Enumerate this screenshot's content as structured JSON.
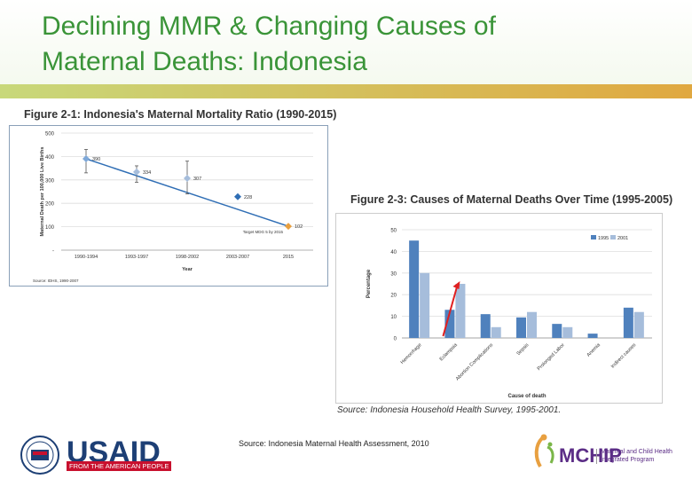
{
  "slide": {
    "title_line1": "Declining MMR & Changing Causes of",
    "title_line2": "Maternal Deaths: Indonesia",
    "source_note": "Source: Indonesia Maternal Health Assessment, 2010"
  },
  "logos": {
    "usaid_name": "USAID",
    "usaid_tagline": "FROM THE AMERICAN PEOPLE",
    "mchip_name": "MCHIP",
    "mchip_line1": "Maternal and Child Health",
    "mchip_line2": "Integrated Program"
  },
  "colors": {
    "title": "#3a9438",
    "series1995": "#4f81bd",
    "series2001": "#a6bddb",
    "line": "#2f6eb5",
    "arrow": "#e02020"
  },
  "chart_data": [
    {
      "type": "line",
      "title": "Figure 2-1: Indonesia's Maternal Mortality Ratio (1990-2015)",
      "xlabel": "Year",
      "ylabel": "Maternal Death per 100,000 Live Births",
      "categories": [
        "1990-1994",
        "1993-1997",
        "1998-2002",
        "2003-2007",
        "2015"
      ],
      "tick_labels": [
        "1990-1994",
        "1993-1997",
        "1998-2002",
        "2003-2007",
        "2015"
      ],
      "ylim": [
        0,
        500
      ],
      "yticks": [
        0,
        100,
        200,
        300,
        400,
        500
      ],
      "points": [
        {
          "label": "390",
          "x": 0,
          "y": 390,
          "err_low": 330,
          "err_high": 430,
          "color": "#7fa8d8"
        },
        {
          "label": "334",
          "x": 1,
          "y": 334,
          "err_low": 290,
          "err_high": 360,
          "color": "#a6bddb"
        },
        {
          "label": "307",
          "x": 2,
          "y": 307,
          "err_low": 240,
          "err_high": 380,
          "color": "#a6bddb"
        },
        {
          "label": "228",
          "x": 3,
          "y": 228,
          "err_low": 228,
          "err_high": 228,
          "color": "#2f6eb5"
        },
        {
          "label": "102",
          "x": 4,
          "y": 102,
          "err_low": 102,
          "err_high": 102,
          "color": "#e8a040"
        }
      ],
      "annotation": "Target MDG 5 by 2015",
      "source": "Source: IDHS, 1990-2007"
    },
    {
      "type": "bar",
      "title": "Figure 2-3: Causes of Maternal Deaths Over Time (1995-2005)",
      "xlabel": "Cause of death",
      "ylabel": "Percentage",
      "ylim": [
        0,
        50
      ],
      "yticks": [
        0,
        10,
        20,
        30,
        40,
        50
      ],
      "categories": [
        "Hemorrhage",
        "Eclampsia",
        "Abortion Complications",
        "Sepsis",
        "Prolonged Labor",
        "Anemia",
        "Indirect causes"
      ],
      "series": [
        {
          "name": "1995",
          "values": [
            45,
            13,
            11,
            9.5,
            6.5,
            2,
            14
          ]
        },
        {
          "name": "2001",
          "values": [
            30,
            25,
            5,
            12,
            5,
            0,
            12
          ]
        }
      ],
      "source": "Source: Indonesia Household Health Survey, 1995-2001."
    }
  ]
}
